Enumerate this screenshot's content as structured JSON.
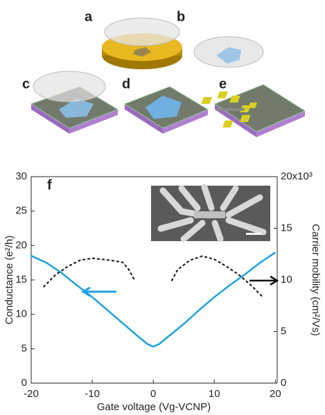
{
  "panels": [
    "a",
    "b",
    "c",
    "d",
    "e"
  ],
  "chart_data": {
    "type": "line",
    "label": "f",
    "x_label": "Gate voltage (Vg-VCNP)",
    "y_label": "Conductance (e²/h)",
    "y2_label": "Carrier mobility (cm²/Vs)",
    "xlim": [
      -20,
      20.3
    ],
    "xticks": [
      -20,
      -10,
      0,
      10,
      20
    ],
    "ylim": [
      0,
      30
    ],
    "yticks": [
      0,
      5,
      10,
      15,
      20,
      25,
      30
    ],
    "y2lim": [
      0,
      20
    ],
    "y2ticks": [
      0,
      5,
      10,
      15,
      {
        "value": 20,
        "label": "20x10³"
      }
    ],
    "series": [
      {
        "color": "#1aa3e0",
        "dash": false,
        "x": [
          -20,
          -17.5,
          -15,
          -12.5,
          -10,
          -7.5,
          -5,
          -2.5,
          -1,
          0,
          1,
          2.5,
          5,
          7.5,
          10,
          12.5,
          15,
          17.5,
          20
        ],
        "values": [
          18.5,
          17.5,
          16,
          14.2,
          12.5,
          10.6,
          8.7,
          6.8,
          5.7,
          5.3,
          5.7,
          6.8,
          8.6,
          10.6,
          12.5,
          14.2,
          15.8,
          17.5,
          19
        ]
      },
      {
        "color": "#111111",
        "dash": true,
        "axis": "y2",
        "x": [
          -18,
          -16,
          -14,
          -12,
          -10,
          -7,
          -5,
          -4,
          -3,
          null,
          3,
          4,
          6,
          8,
          10,
          12,
          14,
          16,
          18
        ],
        "values": [
          9.3,
          10.5,
          11.3,
          11.9,
          12.1,
          11.9,
          11.7,
          11,
          9.9,
          null,
          9.9,
          11,
          11.9,
          12.3,
          12,
          11.3,
          10.5,
          9.5,
          8.3
        ]
      }
    ]
  }
}
